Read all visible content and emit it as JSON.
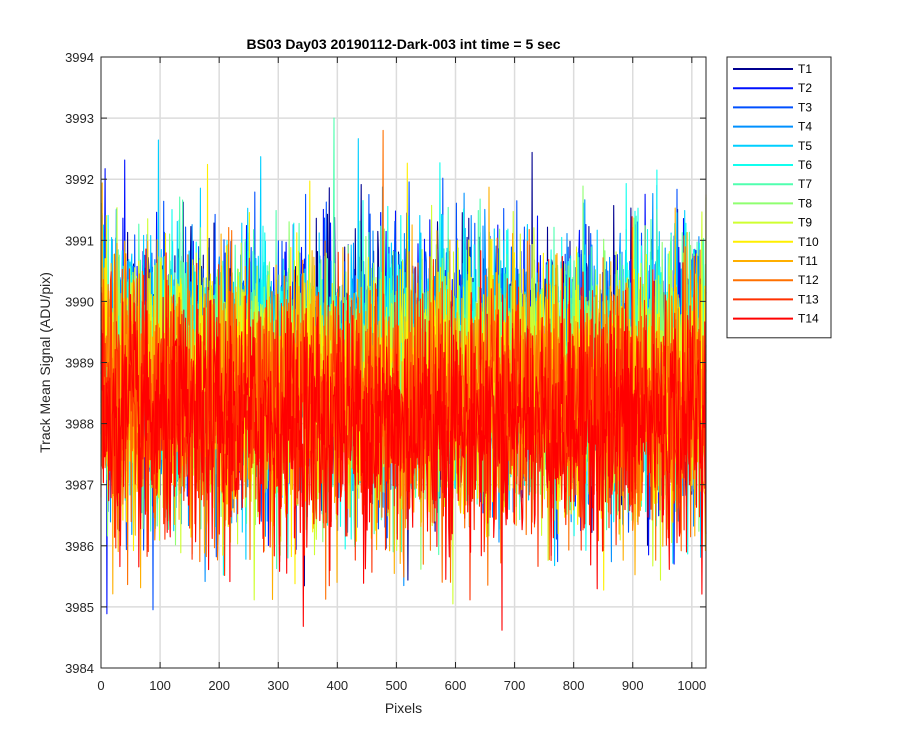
{
  "chart_data": {
    "type": "line",
    "title": "BS03 Day03 20190112-Dark-003 int time = 5 sec",
    "xlabel": "Pixels",
    "ylabel": "Track Mean Signal (ADU/pix)",
    "xlim": [
      0,
      1024
    ],
    "ylim": [
      3984,
      3994
    ],
    "xticks": [
      0,
      100,
      200,
      300,
      400,
      500,
      600,
      700,
      800,
      900,
      1000
    ],
    "yticks": [
      3984,
      3985,
      3986,
      3987,
      3988,
      3989,
      3990,
      3991,
      3992,
      3993,
      3994
    ],
    "grid": true,
    "legend_position": "outside-top-right",
    "n_points_per_series": 1024,
    "series": [
      {
        "name": "T1",
        "color": "#00008f",
        "mean": 3989.0,
        "noise_std": 1.05
      },
      {
        "name": "T2",
        "color": "#0010ff",
        "mean": 3989.0,
        "noise_std": 1.05
      },
      {
        "name": "T3",
        "color": "#0050ff",
        "mean": 3988.9,
        "noise_std": 1.05
      },
      {
        "name": "T4",
        "color": "#0090ff",
        "mean": 3988.9,
        "noise_std": 1.05
      },
      {
        "name": "T5",
        "color": "#00cfff",
        "mean": 3988.9,
        "noise_std": 1.05
      },
      {
        "name": "T6",
        "color": "#10ffef",
        "mean": 3988.8,
        "noise_std": 1.05
      },
      {
        "name": "T7",
        "color": "#50ffaf",
        "mean": 3988.8,
        "noise_std": 1.05
      },
      {
        "name": "T8",
        "color": "#8fff70",
        "mean": 3988.7,
        "noise_std": 1.05
      },
      {
        "name": "T9",
        "color": "#cfff30",
        "mean": 3988.6,
        "noise_std": 1.05
      },
      {
        "name": "T10",
        "color": "#ffef00",
        "mean": 3988.5,
        "noise_std": 1.05
      },
      {
        "name": "T11",
        "color": "#ffaf00",
        "mean": 3988.4,
        "noise_std": 1.05
      },
      {
        "name": "T12",
        "color": "#ff7000",
        "mean": 3988.3,
        "noise_std": 1.05
      },
      {
        "name": "T13",
        "color": "#ff3000",
        "mean": 3988.2,
        "noise_std": 1.05
      },
      {
        "name": "T14",
        "color": "#ff0000",
        "mean": 3988.0,
        "noise_std": 1.0
      }
    ]
  }
}
